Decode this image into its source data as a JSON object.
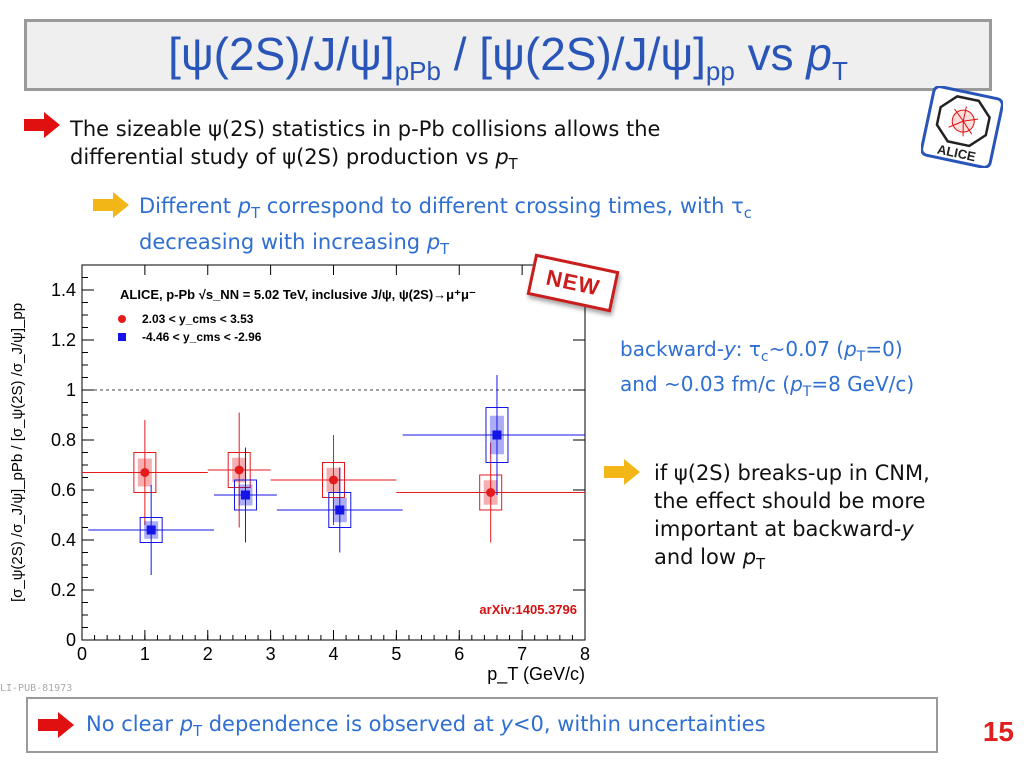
{
  "slide": {
    "title": {
      "open": "[ψ(2S)/J/ψ]",
      "sub1": "pPb",
      "mid": " / [ψ(2S)/J/ψ]",
      "sub2": "pp",
      "vs": " vs ",
      "p": "p",
      "sub3": "T"
    },
    "bullet1": {
      "line1": "The sizeable ψ(2S) statistics in p-Pb collisions allows the",
      "line2_pre": "differential study of ψ(2S) production vs ",
      "line2_p": "p",
      "line2_sub": "T"
    },
    "bullet2": {
      "l1_a": "Different ",
      "l1_p": "p",
      "l1_sub": "T",
      "l1_b": " correspond to different crossing times, with τ",
      "l1_sub2": "c",
      "l2_a": "decreasing with increasing ",
      "l2_p": "p",
      "l2_sub": "T"
    },
    "side_note": {
      "l1_a": "backward-",
      "l1_y": "y",
      "l1_b": ": τ",
      "l1_c": "c",
      "l1_d": "~0.07 (",
      "l1_p": "p",
      "l1_T": "T",
      "l1_e": "=0)",
      "l2_a": "and ~0.03 fm/c (",
      "l2_p": "p",
      "l2_T": "T",
      "l2_b": "=8 GeV/c)"
    },
    "cnm_note": {
      "l1": "if ψ(2S) breaks-up in CNM,",
      "l2": "the effect should be more",
      "l3_a": "important at backward-",
      "l3_y": "y",
      "l4_a": "and low ",
      "l4_p": "p",
      "l4_T": "T"
    },
    "bottom": {
      "a": "No clear ",
      "p": "p",
      "T": "T",
      "b": " dependence is observed at ",
      "y": "y",
      "c": "<0, within uncertainties"
    },
    "page_number": "15",
    "watermark": "LI-PUB-81973",
    "new_stamp": "NEW",
    "logo_text": "ALICE"
  },
  "chart_data": {
    "type": "scatter",
    "header": "ALICE, p-Pb √s_NN = 5.02 TeV, inclusive J/ψ, ψ(2S)→μ⁺μ⁻",
    "xlabel": "p_T (GeV/c)",
    "ylabel": "[σ_ψ(2S) /σ_J/ψ]_pPb / [σ_ψ(2S) /σ_J/ψ]_pp",
    "xlim": [
      0,
      8
    ],
    "ylim": [
      0,
      1.5
    ],
    "xticks": [
      0,
      1,
      2,
      3,
      4,
      5,
      6,
      7,
      8
    ],
    "yticks": [
      0,
      0.2,
      0.4,
      0.6,
      0.8,
      1,
      1.2,
      1.4
    ],
    "reference_line": 1,
    "annotation": "arXiv:1405.3796",
    "legend_position": "top-left",
    "series": [
      {
        "name": "2.03 < y_cms < 3.53",
        "color": "#e41a1c",
        "marker": "circle",
        "points": [
          {
            "x": 1.0,
            "xlo": 0.0,
            "xhi": 2.0,
            "y": 0.67,
            "stat": 0.21,
            "syst": 0.08
          },
          {
            "x": 2.5,
            "xlo": 2.0,
            "xhi": 3.0,
            "y": 0.68,
            "stat": 0.23,
            "syst": 0.07
          },
          {
            "x": 4.0,
            "xlo": 3.0,
            "xhi": 5.0,
            "y": 0.64,
            "stat": 0.18,
            "syst": 0.07
          },
          {
            "x": 6.5,
            "xlo": 5.0,
            "xhi": 8.0,
            "y": 0.59,
            "stat": 0.2,
            "syst": 0.07
          }
        ]
      },
      {
        "name": "-4.46 < y_cms < -2.96",
        "color": "#1414e6",
        "marker": "square",
        "points": [
          {
            "x": 1.1,
            "xlo": 0.1,
            "xhi": 2.1,
            "y": 0.44,
            "stat": 0.18,
            "syst": 0.05
          },
          {
            "x": 2.6,
            "xlo": 2.1,
            "xhi": 3.1,
            "y": 0.58,
            "stat": 0.19,
            "syst": 0.06
          },
          {
            "x": 4.1,
            "xlo": 3.1,
            "xhi": 5.1,
            "y": 0.52,
            "stat": 0.17,
            "syst": 0.07
          },
          {
            "x": 6.6,
            "xlo": 5.1,
            "xhi": 8.0,
            "y": 0.82,
            "stat": 0.24,
            "syst": 0.11
          }
        ]
      }
    ]
  }
}
